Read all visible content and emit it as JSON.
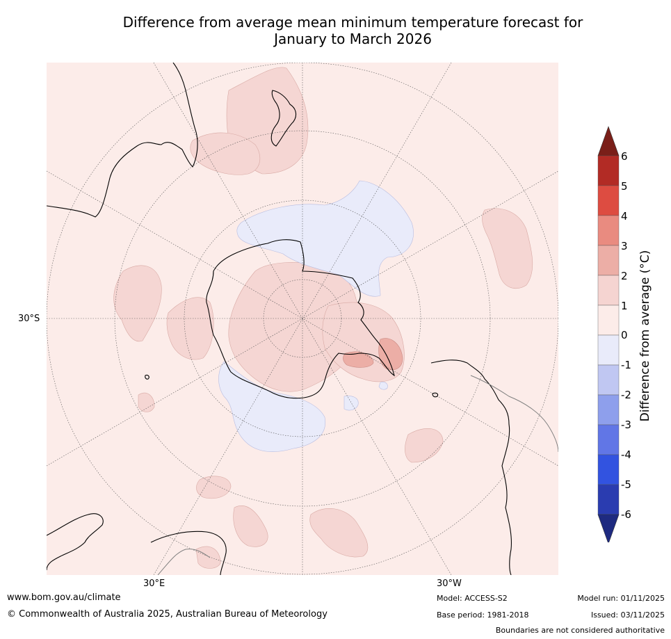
{
  "title": {
    "line1": "Difference from average mean minimum temperature forecast for",
    "line2": "January to March 2026"
  },
  "map": {
    "projection": "south-polar-stereographic",
    "lat_label": "30°S",
    "lon_labels": {
      "east": "30°E",
      "west": "30°W"
    },
    "colors": {
      "ocean_background": "#fcece9",
      "land_outline": "#000000",
      "boundary": "#808080",
      "graticule": "#555555"
    },
    "regions": [
      {
        "name": "antarctica-interior-warm",
        "range": "1 to 2"
      },
      {
        "name": "antarctic-peninsula-warm",
        "range": "2 to 3"
      },
      {
        "name": "south-pacific-cool",
        "range": "-1 to 0"
      },
      {
        "name": "indian-ocean-cool",
        "range": "-1 to 0"
      },
      {
        "name": "tasman-sea-warm",
        "range": "1 to 2"
      }
    ]
  },
  "colorbar": {
    "label": "Difference from average (°C)",
    "levels": [
      "6",
      "5",
      "4",
      "3",
      "2",
      "1",
      "0",
      "-1",
      "-2",
      "-3",
      "-4",
      "-5",
      "-6"
    ],
    "bins": [
      "#b22b25",
      "#dd4c41",
      "#e98b80",
      "#ecaea6",
      "#f5d4d1",
      "#fcece9",
      "#e9ebfa",
      "#c0c7f2",
      "#8e9fec",
      "#6176e6",
      "#3253e0",
      "#2a3cb0"
    ],
    "max_extend_color": "#7a1f19",
    "min_extend_color": "#1e2a80"
  },
  "footer": {
    "website": "www.bom.gov.au/climate",
    "copyright": "© Commonwealth of Australia 2025, Australian Bureau of Meteorology",
    "model": "Model: ACCESS-S2",
    "base_period": "Base period: 1981-2018",
    "model_run": "Model run: 01/11/2025",
    "issued": "Issued: 03/11/2025",
    "disclaimer": "Boundaries are not considered authoritative"
  }
}
